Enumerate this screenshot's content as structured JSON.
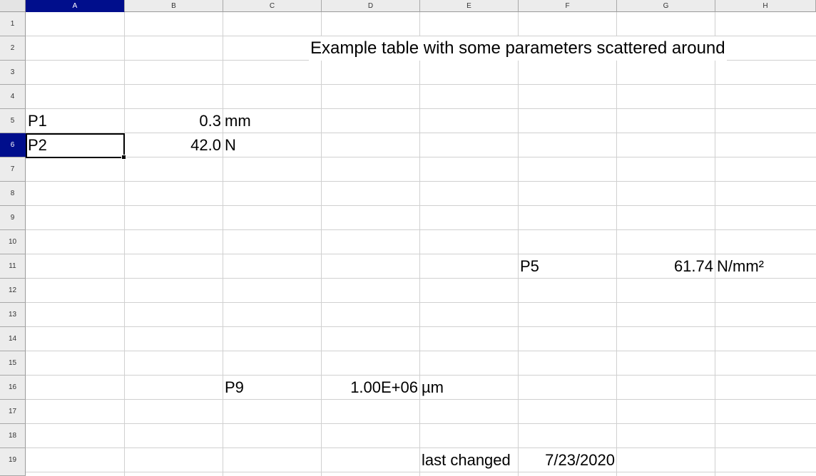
{
  "columns": [
    "A",
    "B",
    "C",
    "D",
    "E",
    "F",
    "G",
    "H"
  ],
  "rows": [
    "1",
    "2",
    "3",
    "4",
    "5",
    "6",
    "7",
    "8",
    "9",
    "10",
    "11",
    "12",
    "13",
    "14",
    "15",
    "16",
    "17",
    "18",
    "19"
  ],
  "active_cell": {
    "column": "A",
    "row": "6"
  },
  "title": "Example table with some parameters scattered around",
  "cells": {
    "A5": "P1",
    "B5": "0.3",
    "C5": "mm",
    "A6": "P2",
    "B6": "42.0",
    "C6": "N",
    "F11": "P5",
    "G11": "61.74",
    "H11": "N/mm²",
    "C16": "P9",
    "D16": "1.00E+06",
    "E16": "µm",
    "E19": "last changed",
    "F19": "7/23/2020"
  },
  "colors": {
    "selection_header": "#000e8c",
    "grid": "#d0d0d0",
    "header_bg": "#ececec"
  }
}
